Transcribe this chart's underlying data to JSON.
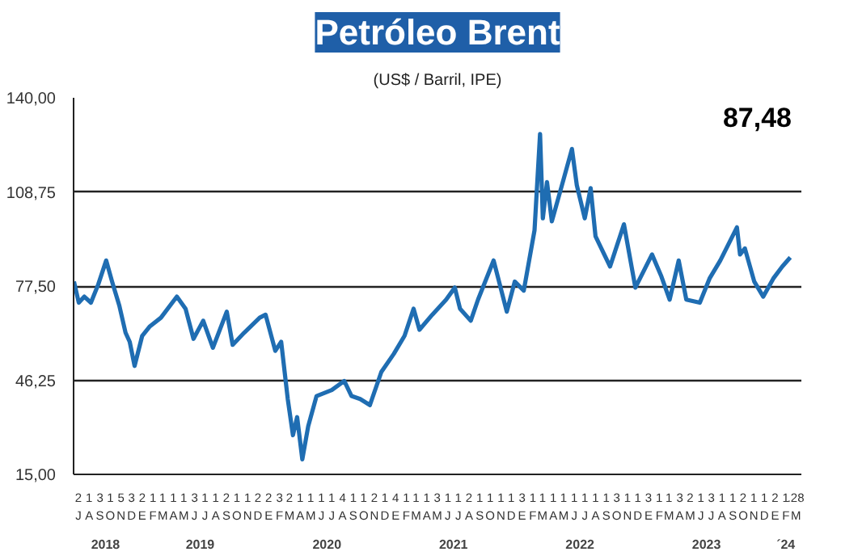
{
  "chart_data": {
    "type": "line",
    "title": "Petróleo Brent",
    "subtitle": "(US$ / Barril, IPE)",
    "annotations": [
      "87,48"
    ],
    "x": [
      "2018-07-02",
      "2018-07-16",
      "2018-08-01",
      "2018-08-20",
      "2018-09-10",
      "2018-10-03",
      "2018-10-20",
      "2018-11-10",
      "2018-11-28",
      "2018-12-10",
      "2018-12-24",
      "2019-01-15",
      "2019-02-05",
      "2019-03-10",
      "2019-04-25",
      "2019-05-20",
      "2019-06-12",
      "2019-07-10",
      "2019-08-07",
      "2019-09-16",
      "2019-10-03",
      "2019-11-05",
      "2019-12-20",
      "2020-01-06",
      "2020-02-03",
      "2020-02-20",
      "2020-03-10",
      "2020-03-25",
      "2020-04-06",
      "2020-04-21",
      "2020-05-08",
      "2020-06-01",
      "2020-07-15",
      "2020-08-20",
      "2020-09-10",
      "2020-10-05",
      "2020-11-02",
      "2020-12-05",
      "2021-01-10",
      "2021-02-10",
      "2021-03-08",
      "2021-03-25",
      "2021-05-01",
      "2021-06-10",
      "2021-07-05",
      "2021-07-20",
      "2021-08-20",
      "2021-09-10",
      "2021-10-25",
      "2021-12-02",
      "2021-12-25",
      "2022-01-20",
      "2022-02-20",
      "2022-03-08",
      "2022-03-16",
      "2022-03-28",
      "2022-04-11",
      "2022-05-15",
      "2022-06-08",
      "2022-06-22",
      "2022-07-15",
      "2022-08-01",
      "2022-08-15",
      "2022-09-26",
      "2022-11-05",
      "2022-12-08",
      "2023-01-25",
      "2023-02-20",
      "2023-03-17",
      "2023-04-12",
      "2023-05-04",
      "2023-06-12",
      "2023-07-10",
      "2023-08-10",
      "2023-09-27",
      "2023-10-06",
      "2023-10-20",
      "2023-11-16",
      "2023-12-12",
      "2024-01-10",
      "2024-02-05",
      "2024-02-28"
    ],
    "series": [
      {
        "color": "#1f6db2",
        "values": [
          79,
          72,
          74,
          72,
          78,
          86,
          79,
          71,
          62,
          59,
          51,
          61,
          64,
          67,
          74,
          70,
          60,
          66,
          57,
          69,
          58,
          62,
          67,
          68,
          56,
          59,
          40,
          28,
          34,
          20,
          31,
          41,
          43,
          46,
          41,
          40,
          38,
          49,
          55,
          61,
          70,
          63,
          68,
          73,
          77,
          70,
          66,
          73,
          86,
          69,
          79,
          76,
          96,
          128,
          100,
          112,
          99,
          113,
          123,
          111,
          100,
          110,
          94,
          84,
          98,
          77,
          88,
          81,
          73,
          86,
          73,
          72,
          80,
          86,
          97,
          88,
          90,
          79,
          74,
          80,
          84,
          87
        ]
      }
    ],
    "ylim": [
      15,
      140
    ],
    "yticks": [
      {
        "value": 15,
        "label": "15,00"
      },
      {
        "value": 46.25,
        "label": "46,25"
      },
      {
        "value": 77.5,
        "label": "77,50"
      },
      {
        "value": 108.75,
        "label": "108,75"
      },
      {
        "value": 140,
        "label": "140,00"
      }
    ],
    "xlim": [
      "2018-07-01",
      "2024-03-31"
    ],
    "xticks": [
      {
        "value": "2018-07-15",
        "label": "2\nJ"
      },
      {
        "value": "2018-08-15",
        "label": "1\nA"
      },
      {
        "value": "2018-09-15",
        "label": "3\nS"
      },
      {
        "value": "2018-10-15",
        "label": "1\nO"
      },
      {
        "value": "2018-11-15",
        "label": "5\nN"
      },
      {
        "value": "2018-12-15",
        "label": "3\nD"
      },
      {
        "value": "2019-01-15",
        "label": "2\nE"
      },
      {
        "value": "2019-02-15",
        "label": "1\nF"
      },
      {
        "value": "2019-03-15",
        "label": "1\nM"
      },
      {
        "value": "2019-04-15",
        "label": "1\nA"
      },
      {
        "value": "2019-05-15",
        "label": "1\nM"
      },
      {
        "value": "2019-06-15",
        "label": "3\nJ"
      },
      {
        "value": "2019-07-15",
        "label": "1\nJ"
      },
      {
        "value": "2019-08-15",
        "label": "1\nA"
      },
      {
        "value": "2019-09-15",
        "label": "2\nS"
      },
      {
        "value": "2019-10-15",
        "label": "1\nO"
      },
      {
        "value": "2019-11-15",
        "label": "1\nN"
      },
      {
        "value": "2019-12-15",
        "label": "2\nD"
      },
      {
        "value": "2020-01-15",
        "label": "2\nE"
      },
      {
        "value": "2020-02-15",
        "label": "3\nF"
      },
      {
        "value": "2020-03-15",
        "label": "2\nM"
      },
      {
        "value": "2020-04-15",
        "label": "1\nA"
      },
      {
        "value": "2020-05-15",
        "label": "1\nM"
      },
      {
        "value": "2020-06-15",
        "label": "1\nJ"
      },
      {
        "value": "2020-07-15",
        "label": "1\nJ"
      },
      {
        "value": "2020-08-15",
        "label": "4\nA"
      },
      {
        "value": "2020-09-15",
        "label": "1\nS"
      },
      {
        "value": "2020-10-15",
        "label": "1\nO"
      },
      {
        "value": "2020-11-15",
        "label": "2\nN"
      },
      {
        "value": "2020-12-15",
        "label": "1\nD"
      },
      {
        "value": "2021-01-15",
        "label": "4\nE"
      },
      {
        "value": "2021-02-15",
        "label": "1\nF"
      },
      {
        "value": "2021-03-15",
        "label": "1\nM"
      },
      {
        "value": "2021-04-15",
        "label": "1\nA"
      },
      {
        "value": "2021-05-15",
        "label": "3\nM"
      },
      {
        "value": "2021-06-15",
        "label": "1\nJ"
      },
      {
        "value": "2021-07-15",
        "label": "1\nJ"
      },
      {
        "value": "2021-08-15",
        "label": "2\nA"
      },
      {
        "value": "2021-09-15",
        "label": "1\nS"
      },
      {
        "value": "2021-10-15",
        "label": "1\nO"
      },
      {
        "value": "2021-11-15",
        "label": "1\nN"
      },
      {
        "value": "2021-12-15",
        "label": "1\nD"
      },
      {
        "value": "2022-01-15",
        "label": "3\nE"
      },
      {
        "value": "2022-02-15",
        "label": "1\nF"
      },
      {
        "value": "2022-03-15",
        "label": "1\nM"
      },
      {
        "value": "2022-04-15",
        "label": "1\nA"
      },
      {
        "value": "2022-05-15",
        "label": "1\nM"
      },
      {
        "value": "2022-06-15",
        "label": "1\nJ"
      },
      {
        "value": "2022-07-15",
        "label": "1\nJ"
      },
      {
        "value": "2022-08-15",
        "label": "1\nA"
      },
      {
        "value": "2022-09-15",
        "label": "1\nS"
      },
      {
        "value": "2022-10-15",
        "label": "3\nO"
      },
      {
        "value": "2022-11-15",
        "label": "1\nN"
      },
      {
        "value": "2022-12-15",
        "label": "1\nD"
      },
      {
        "value": "2023-01-15",
        "label": "3\nE"
      },
      {
        "value": "2023-02-15",
        "label": "1\nF"
      },
      {
        "value": "2023-03-15",
        "label": "1\nM"
      },
      {
        "value": "2023-04-15",
        "label": "3\nA"
      },
      {
        "value": "2023-05-15",
        "label": "2\nM"
      },
      {
        "value": "2023-06-15",
        "label": "1\nJ"
      },
      {
        "value": "2023-07-15",
        "label": "3\nJ"
      },
      {
        "value": "2023-08-15",
        "label": "1\nA"
      },
      {
        "value": "2023-09-15",
        "label": "1\nS"
      },
      {
        "value": "2023-10-15",
        "label": "2\nO"
      },
      {
        "value": "2023-11-15",
        "label": "1\nN"
      },
      {
        "value": "2023-12-15",
        "label": "1\nD"
      },
      {
        "value": "2024-01-15",
        "label": "2\nE"
      },
      {
        "value": "2024-02-15",
        "label": "1\nF"
      },
      {
        "value": "2024-03-15",
        "label": ".28\nM"
      }
    ],
    "x2ticks": [
      {
        "value": "2018-10-01",
        "label": "2018"
      },
      {
        "value": "2019-07-01",
        "label": "2019"
      },
      {
        "value": "2020-07-01",
        "label": "2020"
      },
      {
        "value": "2021-07-01",
        "label": "2021"
      },
      {
        "value": "2022-07-01",
        "label": "2022"
      },
      {
        "value": "2023-07-01",
        "label": "2023"
      },
      {
        "value": "2024-02-15",
        "label": "´24"
      }
    ],
    "x2lim": [
      "2018-07-01",
      "2024-03-31"
    ],
    "grid": "y"
  }
}
